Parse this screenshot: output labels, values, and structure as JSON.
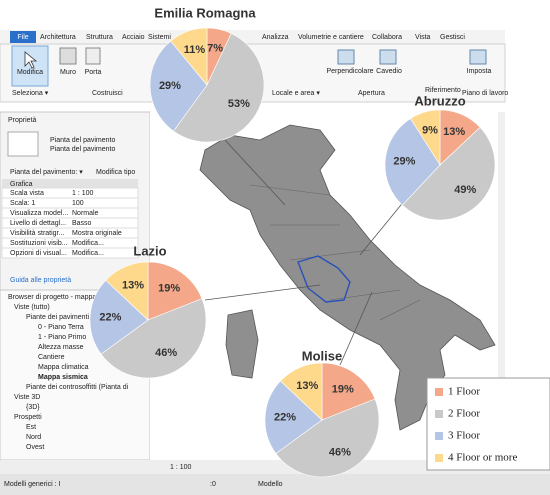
{
  "chart_data": [
    {
      "type": "pie",
      "title": "Emilia Romagna",
      "categories": [
        "1 Floor",
        "2 Floor",
        "3 Floor",
        "4 Floor or more"
      ],
      "values": [
        7,
        53,
        29,
        11
      ],
      "value_labels": [
        "7%",
        "53%",
        "29%",
        "11%"
      ],
      "colors": [
        "#f4a889",
        "#c9c9c9",
        "#b5c5e6",
        "#fed98c"
      ]
    },
    {
      "type": "pie",
      "title": "Abruzzo",
      "categories": [
        "1 Floor",
        "2 Floor",
        "3 Floor",
        "4 Floor or more"
      ],
      "values": [
        13,
        49,
        29,
        9
      ],
      "value_labels": [
        "13%",
        "49%",
        "29%",
        "9%"
      ],
      "colors": [
        "#f4a889",
        "#c9c9c9",
        "#b5c5e6",
        "#fed98c"
      ]
    },
    {
      "type": "pie",
      "title": "Lazio",
      "categories": [
        "1 Floor",
        "2 Floor",
        "3 Floor",
        "4 Floor or more"
      ],
      "values": [
        19,
        46,
        22,
        13
      ],
      "value_labels": [
        "19%",
        "46%",
        "22%",
        "13%"
      ],
      "colors": [
        "#f4a889",
        "#c9c9c9",
        "#b5c5e6",
        "#fed98c"
      ]
    },
    {
      "type": "pie",
      "title": "Molise",
      "categories": [
        "1 Floor",
        "2 Floor",
        "3 Floor",
        "4 Floor or more"
      ],
      "values": [
        19,
        46,
        22,
        13
      ],
      "value_labels": [
        "19%",
        "46%",
        "22%",
        "13%"
      ],
      "colors": [
        "#f4a889",
        "#c9c9c9",
        "#b5c5e6",
        "#fed98c"
      ]
    }
  ],
  "ui": {
    "tabs": [
      "File",
      "Architettura",
      "Struttura",
      "Acciaio",
      "Sistemi",
      "Analizza",
      "Volumetrie e cantiere",
      "Collabora",
      "Vista",
      "Gestisci"
    ],
    "ribbon_buttons": [
      "Modifica",
      "Muro",
      "Porta",
      "Perpendicolare",
      "Cavedio",
      "Imposta"
    ],
    "ribbon_groups": [
      "Seleziona ▾",
      "Costruisci",
      "Locale e area ▾",
      "Apertura",
      "Riferimento",
      "Piano di lavoro"
    ],
    "properties": {
      "title": "Proprietà",
      "type": [
        "Pianta del pavimento",
        "Pianta del pavimento"
      ],
      "instance": "Pianta del pavimento: ▾",
      "edit_type": "Modifica tipo",
      "group": "Grafica",
      "rows": [
        [
          "Scala vista",
          "1 : 100"
        ],
        [
          "Scala: 1",
          "100"
        ],
        [
          "Visualizza model...",
          "Normale"
        ],
        [
          "Livello di dettagl...",
          "Basso"
        ],
        [
          "Visibilità stratigr...",
          "Mostra originale"
        ],
        [
          "Sostituzioni visib...",
          "Modifica..."
        ],
        [
          "Opzioni di visual...",
          "Modifica..."
        ]
      ],
      "help": "Guida alle proprietà"
    },
    "browser": {
      "title": "Browser di progetto - mappa i...",
      "items": [
        "Viste (tutto)",
        "Piante dei pavimenti",
        "0 - Piano Terra",
        "1 - Piano Primo",
        "Altezza masse",
        "Cantiere",
        "Mappa climatica",
        "Mappa sismica",
        "Piante dei controsoffitti (Pianta di",
        "Viste 3D",
        "{3D}",
        "Prospetti",
        "Est",
        "Nord",
        "Ovest"
      ]
    },
    "status": [
      "Modelli generici : I",
      ":0",
      "1 : 100",
      "Modello"
    ]
  }
}
